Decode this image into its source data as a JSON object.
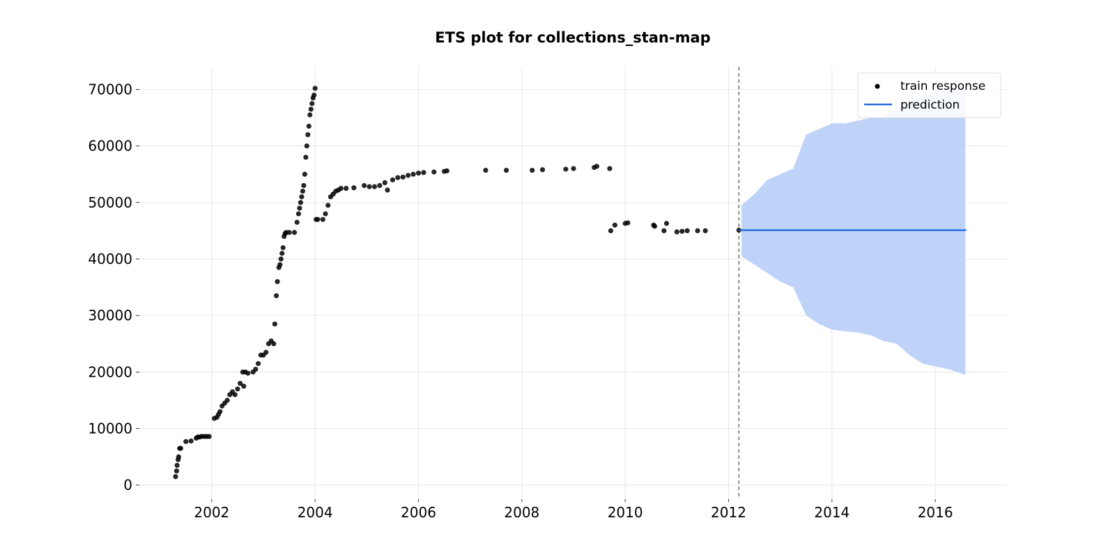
{
  "chart_data": {
    "type": "scatter",
    "title": "ETS plot for collections_stan-map",
    "xlabel": "",
    "ylabel": "",
    "xlim": [
      2000.6,
      2017.4
    ],
    "ylim": [
      -2500,
      74000
    ],
    "grid": true,
    "legend_position": "top-right",
    "x_ticks": [
      2002,
      2004,
      2006,
      2008,
      2010,
      2012,
      2014,
      2016
    ],
    "x_tick_labels": [
      "2002",
      "2004",
      "2006",
      "2008",
      "2010",
      "2012",
      "2014",
      "2016"
    ],
    "y_ticks": [
      0,
      10000,
      20000,
      30000,
      40000,
      50000,
      60000,
      70000
    ],
    "y_tick_labels": [
      "0",
      "10000",
      "20000",
      "30000",
      "40000",
      "50000",
      "60000",
      "70000"
    ],
    "train_end": 2012.2,
    "colors": {
      "train": "#000000",
      "prediction": "#2d6fe0",
      "interval": "#bfd3f8",
      "grid": "#e6e6e6",
      "cutoff": "#555555"
    },
    "series": [
      {
        "name": "train response",
        "kind": "scatter",
        "x": [
          2001.3,
          2001.32,
          2001.33,
          2001.35,
          2001.36,
          2001.38,
          2001.4,
          2001.5,
          2001.6,
          2001.7,
          2001.73,
          2001.76,
          2001.8,
          2001.85,
          2001.9,
          2001.95,
          2002.05,
          2002.1,
          2002.13,
          2002.16,
          2002.2,
          2002.25,
          2002.3,
          2002.35,
          2002.4,
          2002.45,
          2002.5,
          2002.55,
          2002.6,
          2002.62,
          2002.65,
          2002.7,
          2002.8,
          2002.85,
          2002.9,
          2002.95,
          2003.0,
          2003.05,
          2003.1,
          2003.15,
          2003.2,
          2003.22,
          2003.25,
          2003.27,
          2003.3,
          2003.32,
          2003.34,
          2003.36,
          2003.38,
          2003.4,
          2003.42,
          2003.44,
          2003.5,
          2003.6,
          2003.65,
          2003.68,
          2003.7,
          2003.72,
          2003.74,
          2003.76,
          2003.78,
          2003.8,
          2003.82,
          2003.84,
          2003.86,
          2003.88,
          2003.9,
          2003.92,
          2003.94,
          2003.96,
          2003.98,
          2004.0,
          2004.02,
          2004.05,
          2004.15,
          2004.2,
          2004.25,
          2004.3,
          2004.35,
          2004.4,
          2004.45,
          2004.5,
          2004.6,
          2004.75,
          2004.95,
          2005.05,
          2005.15,
          2005.25,
          2005.35,
          2005.4,
          2005.5,
          2005.6,
          2005.7,
          2005.8,
          2005.9,
          2006.0,
          2006.1,
          2006.3,
          2006.5,
          2006.55,
          2007.3,
          2007.7,
          2008.2,
          2008.4,
          2008.85,
          2009.0,
          2009.4,
          2009.45,
          2009.7,
          2009.72,
          2009.8,
          2010.0,
          2010.05,
          2010.55,
          2010.57,
          2010.75,
          2010.8,
          2011.0,
          2011.1,
          2011.2,
          2011.4,
          2011.55,
          2012.2
        ],
        "y": [
          1500,
          2500,
          3500,
          4500,
          5000,
          6500,
          6500,
          7700,
          7800,
          8300,
          8500,
          8500,
          8600,
          8600,
          8600,
          8600,
          11800,
          12000,
          12500,
          13000,
          14000,
          14500,
          15000,
          16000,
          16500,
          16000,
          17000,
          18000,
          20000,
          17500,
          20000,
          19800,
          20000,
          20500,
          21500,
          23000,
          23000,
          23500,
          25000,
          25500,
          25000,
          28500,
          33500,
          36000,
          38500,
          39000,
          40000,
          41000,
          42000,
          44000,
          44500,
          44700,
          44700,
          44700,
          46500,
          48000,
          49000,
          50000,
          51000,
          52000,
          53000,
          55000,
          58000,
          60000,
          62000,
          63500,
          65500,
          66500,
          67500,
          68500,
          69000,
          70200,
          47000,
          47000,
          47000,
          48000,
          49500,
          51000,
          51500,
          52000,
          52200,
          52500,
          52500,
          52600,
          53000,
          52800,
          52800,
          53000,
          53500,
          52200,
          54000,
          54400,
          54500,
          54800,
          55000,
          55200,
          55300,
          55400,
          55500,
          55600,
          55700,
          55700,
          55700,
          55800,
          55900,
          56000,
          56200,
          56400,
          56000,
          45000,
          46000,
          46300,
          46400,
          46000,
          45800,
          45000,
          46300,
          44800,
          44900,
          45000,
          45000,
          45000,
          45100
        ]
      },
      {
        "name": "prediction",
        "kind": "line",
        "x": [
          2012.2,
          2016.6
        ],
        "y": [
          45100,
          45100
        ]
      }
    ],
    "interval": {
      "x": [
        2012.25,
        2012.5,
        2012.75,
        2013.0,
        2013.25,
        2013.5,
        2013.75,
        2014.0,
        2014.25,
        2014.5,
        2014.75,
        2015.0,
        2015.25,
        2015.5,
        2015.75,
        2016.0,
        2016.25,
        2016.58
      ],
      "upper": [
        49500,
        51500,
        54000,
        55000,
        56000,
        62000,
        63000,
        64000,
        64000,
        64500,
        65000,
        65000,
        67000,
        68000,
        69000,
        69500,
        70000,
        70000
      ],
      "lower": [
        40500,
        39000,
        37500,
        36000,
        35000,
        30000,
        28500,
        27500,
        27200,
        27000,
        26500,
        25500,
        25000,
        23000,
        21500,
        21000,
        20500,
        19500
      ]
    }
  }
}
